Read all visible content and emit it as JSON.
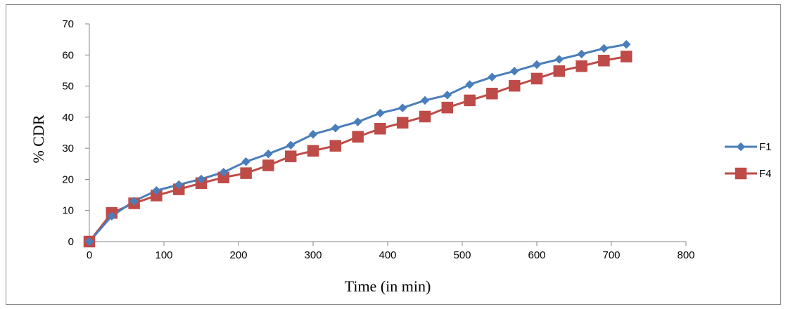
{
  "chart_data": {
    "type": "line",
    "title": "",
    "xlabel": "Time (in min)",
    "ylabel": "% CDR",
    "xlim": [
      0,
      800
    ],
    "ylim": [
      0,
      70
    ],
    "xticks": [
      0,
      100,
      200,
      300,
      400,
      500,
      600,
      700,
      800
    ],
    "yticks": [
      0,
      10,
      20,
      30,
      40,
      50,
      60,
      70
    ],
    "grid": false,
    "legend": "right",
    "x": [
      0,
      30,
      60,
      90,
      120,
      150,
      180,
      210,
      240,
      270,
      300,
      330,
      360,
      390,
      420,
      450,
      480,
      510,
      540,
      570,
      600,
      630,
      660,
      690,
      720
    ],
    "series": [
      {
        "name": "F1",
        "color": "#4a7ebb",
        "marker": "diamond",
        "values": [
          0,
          8.2,
          13.0,
          16.4,
          18.3,
          20.1,
          22.3,
          25.7,
          28.2,
          31.0,
          34.5,
          36.5,
          38.5,
          41.3,
          43.0,
          45.4,
          47.1,
          50.5,
          52.9,
          54.8,
          56.9,
          58.6,
          60.3,
          62.1,
          63.4
        ]
      },
      {
        "name": "F4",
        "color": "#be4b48",
        "marker": "square",
        "values": [
          0,
          9.2,
          12.3,
          14.8,
          16.8,
          18.8,
          20.6,
          22.0,
          24.5,
          27.4,
          29.2,
          30.8,
          33.7,
          36.3,
          38.2,
          40.2,
          43.1,
          45.4,
          47.6,
          50.1,
          52.4,
          54.8,
          56.4,
          58.2,
          59.5
        ]
      }
    ]
  }
}
